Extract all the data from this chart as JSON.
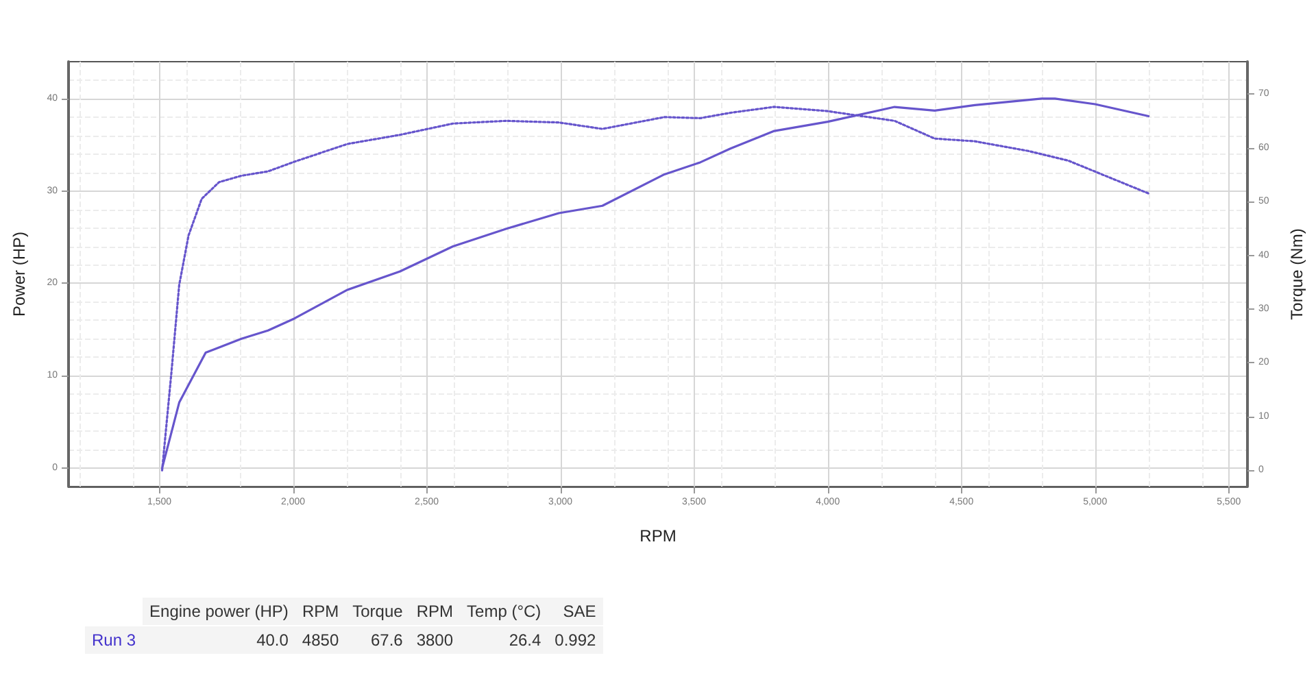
{
  "chart_data": {
    "type": "line",
    "xlabel": "RPM",
    "ylabel": "Power (HP)",
    "y2label": "Torque (Nm)",
    "xlim": [
      1160,
      5570
    ],
    "xticks": [
      {
        "value": 1500,
        "label": "1,500"
      },
      {
        "value": 2000,
        "label": "2,000"
      },
      {
        "value": 2500,
        "label": "2,500"
      },
      {
        "value": 3000,
        "label": "3,000"
      },
      {
        "value": 3500,
        "label": "3,500"
      },
      {
        "value": 4000,
        "label": "4,000"
      },
      {
        "value": 4500,
        "label": "4,500"
      },
      {
        "value": 5000,
        "label": "5,000"
      },
      {
        "value": 5500,
        "label": "5,500"
      }
    ],
    "ylim": [
      -2,
      44
    ],
    "yticks": [
      0,
      10,
      20,
      30,
      40
    ],
    "y2lim": [
      -3,
      76
    ],
    "y2ticks": [
      0,
      10,
      20,
      30,
      40,
      50,
      60,
      70
    ],
    "grid": true,
    "marker": "none",
    "series": [
      {
        "color": "#6655cc",
        "line_style": "solid",
        "x": [
          1510,
          1574,
          1673,
          1807,
          1906,
          2005,
          2203,
          2400,
          2598,
          2796,
          2994,
          3157,
          3389,
          3523,
          3636,
          3800,
          4000,
          4250,
          4400,
          4550,
          4800,
          4850,
          5000,
          5200
        ],
        "values": [
          0,
          7.1,
          12.5,
          14.0,
          14.9,
          16.2,
          19.3,
          21.3,
          24.0,
          25.9,
          27.6,
          28.4,
          31.8,
          33.1,
          34.6,
          36.5,
          37.5,
          39.1,
          38.7,
          39.3,
          40.0,
          40.0,
          39.4,
          38.1
        ]
      },
      {
        "color": "#6655cc",
        "line_style": "dotted",
        "axis": "y2",
        "x": [
          1510,
          1545,
          1574,
          1609,
          1658,
          1723,
          1807,
          1906,
          2005,
          2203,
          2400,
          2598,
          2796,
          2994,
          3157,
          3389,
          3523,
          3636,
          3800,
          4000,
          4250,
          4400,
          4550,
          4750,
          4900,
          5200
        ],
        "values": [
          0,
          18.3,
          34.5,
          43.7,
          50.5,
          53.6,
          54.8,
          55.6,
          57.4,
          60.7,
          62.4,
          64.5,
          65.0,
          64.7,
          63.5,
          65.7,
          65.5,
          66.5,
          67.6,
          66.8,
          65.0,
          61.7,
          61.2,
          59.4,
          57.6,
          51.5
        ]
      }
    ],
    "annotations": [
      "Engine power (HP)",
      "RPM",
      "Torque",
      "RPM",
      "Temp (°C)",
      "SAE",
      "Run 3",
      "40.0",
      "4850",
      "67.6",
      "3800",
      "26.4",
      "0.992"
    ]
  }
}
